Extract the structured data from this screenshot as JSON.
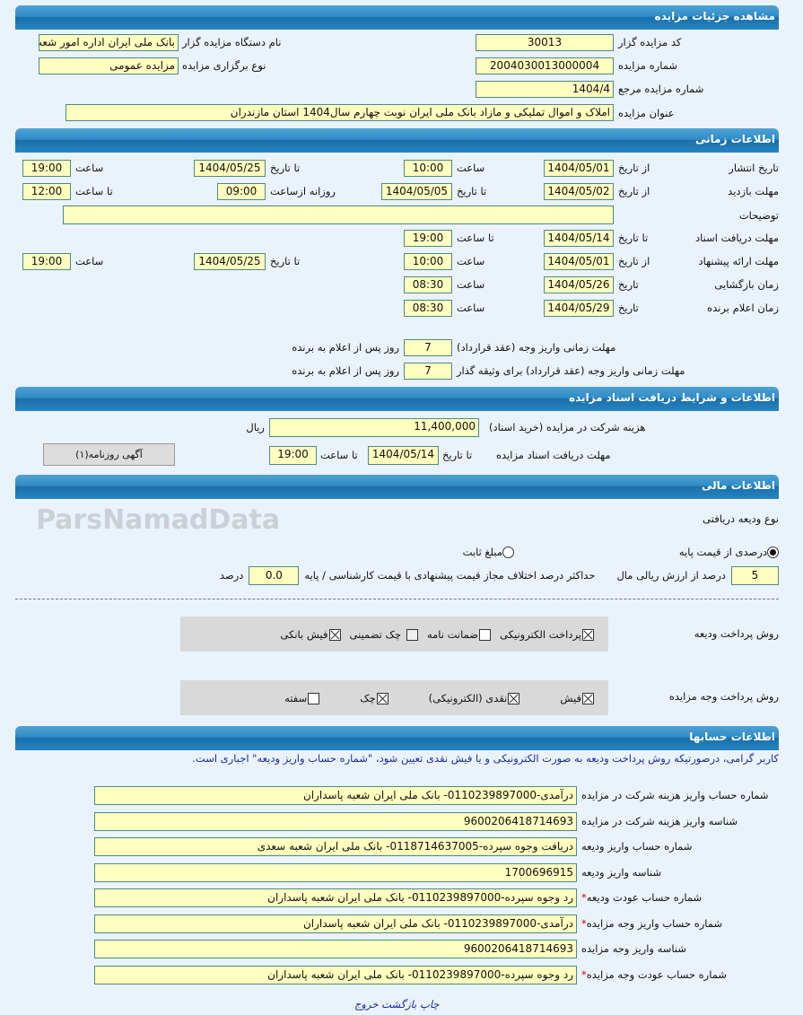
{
  "sections": {
    "details": "مشاهده جزئیات مزایده",
    "timing": "اطلاعات زمانی",
    "documents": "اطلاعات و شرایط دریافت اسناد مزایده",
    "financial": "اطلاعات مالی",
    "accounts": "اطلاعات حسابها"
  },
  "details": {
    "code_label": "کد مزایده گزار",
    "code": "30013",
    "org_label": "نام دستگاه مزایده گزار",
    "org": "بانک ملی ایران اداره امور شعب",
    "number_label": "شماره مزایده",
    "number": "2004030013000004",
    "type_label": "نوع برگزاری مزایده",
    "type": "مزایده عمومی",
    "ref_label": "شماره مزایده مرجع",
    "ref": "1404/4",
    "title_label": "عنوان مزایده",
    "title": "املاک و اموال تملیکی و مازاد بانک ملی ایران نوبت چهارم سال1404 استان مازندران"
  },
  "timing": {
    "publish": {
      "label": "تاریخ انتشار",
      "from_label": "از تاریخ",
      "from": "1404/05/01",
      "time1_label": "ساعت",
      "time1": "10:00",
      "to_label": "تا تاریخ",
      "to": "1404/05/25",
      "time2_label": "ساعت",
      "time2": "19:00"
    },
    "visit": {
      "label": "مهلت بازدید",
      "from_label": "از تاریخ",
      "from": "1404/05/02",
      "to_label": "تا تاریخ",
      "to": "1404/05/05",
      "daily_label": "روزانه ازساعت",
      "daily": "09:00",
      "until_label": "تا ساعت",
      "until": "12:00"
    },
    "notes_label": "توضیحات",
    "notes": "",
    "docs": {
      "label": "مهلت دریافت اسناد",
      "to_label": "تا تاریخ",
      "to": "1404/05/14",
      "time_label": "تا ساعت",
      "time": "19:00"
    },
    "offer": {
      "label": "مهلت ارائه پیشنهاد",
      "from_label": "از تاریخ",
      "from": "1404/05/01",
      "time1_label": "ساعت",
      "time1": "10:00",
      "to_label": "تا تاریخ",
      "to": "1404/05/25",
      "time2_label": "ساعت",
      "time2": "19:00"
    },
    "opening": {
      "label": "زمان بازگشایی",
      "date_label": "تاریخ",
      "date": "1404/05/26",
      "time_label": "ساعت",
      "time": "08:30"
    },
    "winner": {
      "label": "زمان اعلام برنده",
      "date_label": "تاریخ",
      "date": "1404/05/29",
      "time_label": "ساعت",
      "time": "08:30"
    },
    "pay_deadline": {
      "label": "مهلت زمانی واریز وجه (عقد قرارداد)",
      "value": "7",
      "suffix": "روز پس از اعلام به برنده"
    },
    "pay_deadline_guarantor": {
      "label": "مهلت زمانی واریز وجه (عقد قرارداد) برای وثیقه گذار",
      "value": "7",
      "suffix": "روز پس از اعلام به برنده"
    }
  },
  "documents": {
    "fee_label": "هزینه شرکت در مزایده (خرید اسناد)",
    "fee": "11,400,000",
    "currency": "ریال",
    "deadline_label": "مهلت دریافت اسناد مزایده",
    "to_label": "تا تاریخ",
    "to": "1404/05/14",
    "time_label": "تا ساعت",
    "time": "19:00",
    "newspaper_button": "آگهی روزنامه(۱)"
  },
  "financial": {
    "deposit_type_label": "نوع ودیعه دریافتی",
    "radio_percent": "درصدی از قیمت پایه",
    "radio_percent_selected": true,
    "radio_fixed": "مبلغ ثابت",
    "radio_fixed_selected": false,
    "percent": "5",
    "percent_suffix": "درصد از ارزش ریالی مال",
    "max_diff_label": "حداکثر درصد اختلاف مجاز قیمت پیشنهادی با قیمت کارشناسی / پایه",
    "max_diff": "0.0",
    "max_diff_suffix": "درصد",
    "deposit_methods_label": "روش پرداخت ودیعه",
    "deposit_methods": [
      {
        "label": "پرداخت الکترونیکی",
        "checked": true
      },
      {
        "label": "ضمانت نامه",
        "checked": false
      },
      {
        "label": "چک تضمینی",
        "checked": false
      },
      {
        "label": "فیش بانکی",
        "checked": true
      }
    ],
    "payment_methods_label": "روش پرداخت وجه مزایده",
    "payment_methods": [
      {
        "label": "فیش",
        "checked": true
      },
      {
        "label": "نقدی (الکترونیکی)",
        "checked": true
      },
      {
        "label": "چک",
        "checked": true
      },
      {
        "label": "سفته",
        "checked": false
      }
    ]
  },
  "accounts": {
    "notice": "کاربر گرامی، درصورتیکه روش پرداخت ودیعه به صورت الکترونیکی و یا فیش نقدی تعیین شود، \"شماره حساب واریز ودیعه\" اجباری است.",
    "rows": [
      {
        "label": "شماره حساب واریز هزینه شرکت در مزایده",
        "value": "درآمدی-0110239897000- بانک ملی ایران شعبه پاسداران",
        "required": false
      },
      {
        "label": "شناسه واریز هزینه شرکت در مزایده",
        "value": "9600206418714693",
        "required": false
      },
      {
        "label": "شماره حساب واریز ودیعه",
        "value": "دریافت وجوه سپرده-0118714637005- بانک ملی ایران شعبه سعدی",
        "required": false
      },
      {
        "label": "شناسه واریز ودیعه",
        "value": "1700696915",
        "required": false
      },
      {
        "label": "شماره حساب عودت ودیعه",
        "value": "رد وجوه سپرده-0110239897000- بانک ملی ایران شعبه پاسداران",
        "required": true
      },
      {
        "label": "شماره حساب واریز وجه مزایده",
        "value": "درآمدی-0110239897000- بانک ملی ایران شعبه پاسداران",
        "required": true
      },
      {
        "label": "شناسه واریز وجه مزایده",
        "value": "9600206418714693",
        "required": false
      },
      {
        "label": "شماره حساب عودت وجه مزایده",
        "value": "رد وجوه سپرده-0110239897000- بانک ملی ایران شعبه پاسداران",
        "required": true
      }
    ],
    "required_mark": "*"
  },
  "footer": {
    "print": "چاپ",
    "back": "بازگشت",
    "exit": "خروج"
  },
  "watermark": "ParsNamadData",
  "colors": {
    "header": "#2585c2",
    "field": "#ffffc0",
    "background": "#eaf3fb",
    "notice": "#1a2a9a"
  }
}
